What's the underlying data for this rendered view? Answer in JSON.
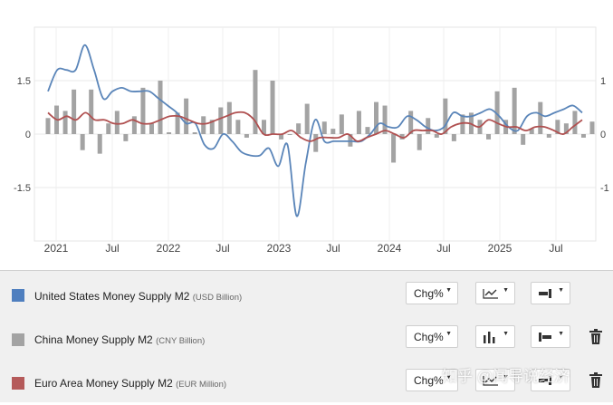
{
  "chart_data": {
    "type": "bar+line",
    "x_tick_labels": [
      "2021",
      "Jul",
      "2022",
      "Jul",
      "2023",
      "Jul",
      "2024",
      "Jul",
      "2025",
      "Jul"
    ],
    "left_axis": {
      "ticks": [
        "1.5",
        "0",
        "-1.5"
      ],
      "values": [
        1.5,
        0,
        -1.5
      ],
      "range": [
        -3.0,
        3.0
      ]
    },
    "right_axis": {
      "ticks": [
        "1",
        "0",
        "-1"
      ],
      "values": [
        1,
        0,
        -1
      ],
      "range": [
        -2.0,
        2.0
      ]
    },
    "grid": true,
    "series": [
      {
        "name": "United States Money Supply M2",
        "unit": "USD Billion",
        "style": "line",
        "color": "#5a85b9",
        "values": [
          1.2,
          1.8,
          1.8,
          1.8,
          2.5,
          1.8,
          1.0,
          1.2,
          1.3,
          1.2,
          1.2,
          1.2,
          1.0,
          0.8,
          0.6,
          0.3,
          0.3,
          -0.3,
          -0.4,
          0.0,
          -0.2,
          -0.5,
          -0.6,
          -0.6,
          -0.4,
          -0.9,
          -0.3,
          -2.3,
          -0.8,
          0.4,
          -0.2,
          -0.2,
          -0.2,
          -0.2,
          -0.2,
          0.0,
          0.3,
          0.2,
          0.2,
          0.5,
          0.4,
          0.2,
          0.1,
          0.2,
          0.6,
          0.5,
          0.5,
          0.6,
          0.7,
          0.5,
          0.2,
          0.1,
          0.5,
          0.6,
          0.5,
          0.6,
          0.7,
          0.8,
          0.6
        ]
      },
      {
        "name": "China Money Supply M2",
        "unit": "CNY Billion",
        "style": "bar",
        "color": "#a3a3a3",
        "values": [
          0.45,
          0.8,
          0.65,
          1.25,
          -0.45,
          1.25,
          -0.55,
          0.3,
          0.65,
          -0.2,
          0.5,
          1.3,
          0.3,
          1.5,
          0.05,
          0.6,
          1.0,
          0.05,
          0.5,
          0.4,
          0.75,
          0.9,
          0.4,
          -0.1,
          1.8,
          0.4,
          1.5,
          -0.15,
          0.0,
          0.3,
          0.85,
          -0.5,
          0.35,
          0.15,
          0.55,
          -0.35,
          0.65,
          0.2,
          0.9,
          0.8,
          -0.8,
          -0.15,
          0.65,
          -0.45,
          0.45,
          -0.1,
          1.0,
          -0.2,
          0.55,
          0.6,
          0.4,
          -0.15,
          1.2,
          0.4,
          1.3,
          -0.3,
          0.15,
          0.9,
          -0.1,
          0.4,
          0.3,
          0.65,
          -0.1,
          0.35
        ]
      },
      {
        "name": "Euro Area Money Supply M2",
        "unit": "EUR Million",
        "style": "line",
        "color": "#b05050",
        "values": [
          0.6,
          0.4,
          0.5,
          0.4,
          0.6,
          0.4,
          0.4,
          0.3,
          0.3,
          0.4,
          0.3,
          0.3,
          0.4,
          0.5,
          0.5,
          0.4,
          0.3,
          0.3,
          0.4,
          0.5,
          0.6,
          0.6,
          0.4,
          0.0,
          0.0,
          0.0,
          0.1,
          -0.1,
          -0.2,
          -0.1,
          -0.1,
          -0.1,
          0.0,
          -0.2,
          -0.1,
          0.0,
          0.1,
          0.0,
          -0.1,
          0.1,
          0.1,
          0.1,
          0.0,
          0.2,
          0.3,
          0.3,
          0.2,
          0.4,
          0.3,
          0.2,
          0.2,
          0.1,
          0.2,
          0.2,
          0.1,
          0.0,
          0.2,
          0.4
        ]
      }
    ]
  },
  "legend": {
    "rows": [
      {
        "name": "United States Money Supply M2",
        "unit": "(USD Billion)",
        "color": "#4f7fbf",
        "transform": "Chg%",
        "chart_type_icon": "line-chart-icon",
        "axis_icon": "axis-right-icon"
      },
      {
        "name": "China Money Supply M2",
        "unit": "(CNY Billion)",
        "color": "#a3a3a3",
        "transform": "Chg%",
        "chart_type_icon": "bar-chart-icon",
        "axis_icon": "axis-left-icon",
        "delete_icon": "trash-icon"
      },
      {
        "name": "Euro Area Money Supply M2",
        "unit": "(EUR Million)",
        "color": "#b55a5a",
        "transform": "Chg%",
        "chart_type_icon": "line-chart-icon",
        "axis_icon": "axis-right-icon",
        "delete_icon": "trash-icon"
      }
    ]
  },
  "watermark": "知乎 @闻导说经济"
}
